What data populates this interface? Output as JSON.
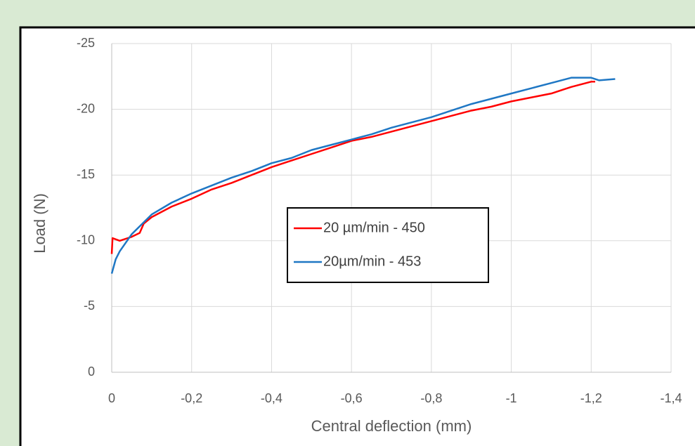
{
  "chart_data": {
    "type": "line",
    "x_label": "Central deflection (mm)",
    "y_label": "Load (N)",
    "xlim": [
      0,
      -1.4
    ],
    "ylim": [
      0,
      -25
    ],
    "xticks": [
      0,
      {
        "value": -0.2,
        "label": "-0,2"
      },
      {
        "value": -0.4,
        "label": "-0,4"
      },
      {
        "value": -0.6,
        "label": "-0,6"
      },
      {
        "value": -0.8,
        "label": "-0,8"
      },
      -1,
      {
        "value": -1.2,
        "label": "-1,2"
      },
      {
        "value": -1.4,
        "label": "-1,4"
      }
    ],
    "yticks": [
      0,
      -5,
      -10,
      -15,
      -20,
      -25
    ],
    "grid": true,
    "legend_position": "center",
    "series": [
      {
        "name": "20 µm/min - 450",
        "color": "#ff0000",
        "x": [
          0,
          -0.002,
          -0.02,
          -0.05,
          -0.07,
          -0.08,
          -0.1,
          -0.15,
          -0.2,
          -0.25,
          -0.3,
          -0.35,
          -0.4,
          -0.45,
          -0.5,
          -0.55,
          -0.6,
          -0.65,
          -0.7,
          -0.75,
          -0.8,
          -0.85,
          -0.9,
          -0.95,
          -1.0,
          -1.05,
          -1.1,
          -1.15,
          -1.2,
          -1.21
        ],
        "values": [
          -9,
          -10.2,
          -10,
          -10.3,
          -10.6,
          -11.3,
          -11.8,
          -12.6,
          -13.2,
          -13.9,
          -14.4,
          -15,
          -15.6,
          -16.1,
          -16.6,
          -17.1,
          -17.6,
          -17.9,
          -18.3,
          -18.7,
          -19.1,
          -19.5,
          -19.9,
          -20.2,
          -20.6,
          -20.9,
          -21.2,
          -21.7,
          -22.1,
          -22.1
        ]
      },
      {
        "name": "20µm/min - 453",
        "color": "#1f77c4",
        "x": [
          0,
          -0.01,
          -0.02,
          -0.05,
          -0.1,
          -0.15,
          -0.2,
          -0.25,
          -0.3,
          -0.35,
          -0.4,
          -0.45,
          -0.5,
          -0.55,
          -0.6,
          -0.65,
          -0.7,
          -0.75,
          -0.8,
          -0.85,
          -0.9,
          -0.95,
          -1.0,
          -1.05,
          -1.1,
          -1.15,
          -1.2,
          -1.22,
          -1.26
        ],
        "values": [
          -7.5,
          -8.6,
          -9.2,
          -10.5,
          -12,
          -12.9,
          -13.6,
          -14.2,
          -14.8,
          -15.3,
          -15.9,
          -16.3,
          -16.9,
          -17.3,
          -17.7,
          -18.1,
          -18.6,
          -19,
          -19.4,
          -19.9,
          -20.4,
          -20.8,
          -21.2,
          -21.6,
          -22,
          -22.4,
          -22.4,
          -22.2,
          -22.3
        ]
      }
    ]
  }
}
